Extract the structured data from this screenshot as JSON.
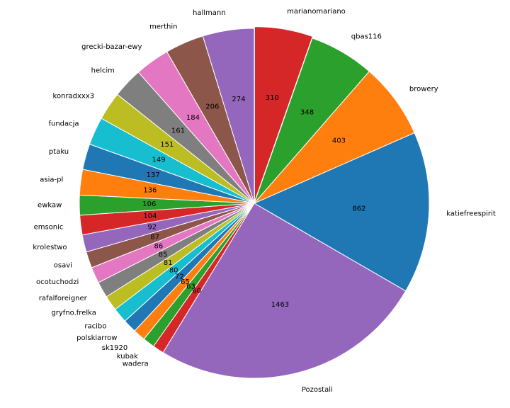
{
  "chart_data": {
    "type": "pie",
    "title": "",
    "start_angle_deg": 90,
    "direction": "clockwise",
    "explode_first": true,
    "slices": [
      {
        "label": "marianomariano",
        "value": 310,
        "color": "#d62728"
      },
      {
        "label": "qbas116",
        "value": 348,
        "color": "#2ca02c"
      },
      {
        "label": "browery",
        "value": 403,
        "color": "#ff7f0e"
      },
      {
        "label": "katiefreespirit",
        "value": 862,
        "color": "#1f77b4"
      },
      {
        "label": "Pozostali",
        "value": 1463,
        "color": "#9467bd"
      },
      {
        "label": "wadera",
        "value": 60,
        "color": "#d62728"
      },
      {
        "label": "kubak",
        "value": 63,
        "color": "#2ca02c"
      },
      {
        "label": "sk1920",
        "value": 65,
        "color": "#ff7f0e"
      },
      {
        "label": "polskiarrow",
        "value": 72,
        "color": "#1f77b4"
      },
      {
        "label": "racibo",
        "value": 80,
        "color": "#17becf"
      },
      {
        "label": "gryfno.frelka",
        "value": 81,
        "color": "#bcbd22"
      },
      {
        "label": "rafalforeigner",
        "value": 85,
        "color": "#7f7f7f"
      },
      {
        "label": "ocotuchodzi",
        "value": 86,
        "color": "#e377c2"
      },
      {
        "label": "osavi",
        "value": 87,
        "color": "#8c564b"
      },
      {
        "label": "krolestwo",
        "value": 92,
        "color": "#9467bd"
      },
      {
        "label": "emsonic",
        "value": 104,
        "color": "#d62728"
      },
      {
        "label": "ewkaw",
        "value": 106,
        "color": "#2ca02c"
      },
      {
        "label": "asia-pl",
        "value": 136,
        "color": "#ff7f0e"
      },
      {
        "label": "ptaku",
        "value": 137,
        "color": "#1f77b4"
      },
      {
        "label": "fundacja",
        "value": 149,
        "color": "#17becf"
      },
      {
        "label": "konradxxx3",
        "value": 151,
        "color": "#bcbd22"
      },
      {
        "label": "helcim",
        "value": 161,
        "color": "#7f7f7f"
      },
      {
        "label": "grecki-bazar-ewy",
        "value": 184,
        "color": "#e377c2"
      },
      {
        "label": "merthin",
        "value": 206,
        "color": "#8c564b"
      },
      {
        "label": "hallmann",
        "value": 274,
        "color": "#9467bd"
      }
    ]
  }
}
